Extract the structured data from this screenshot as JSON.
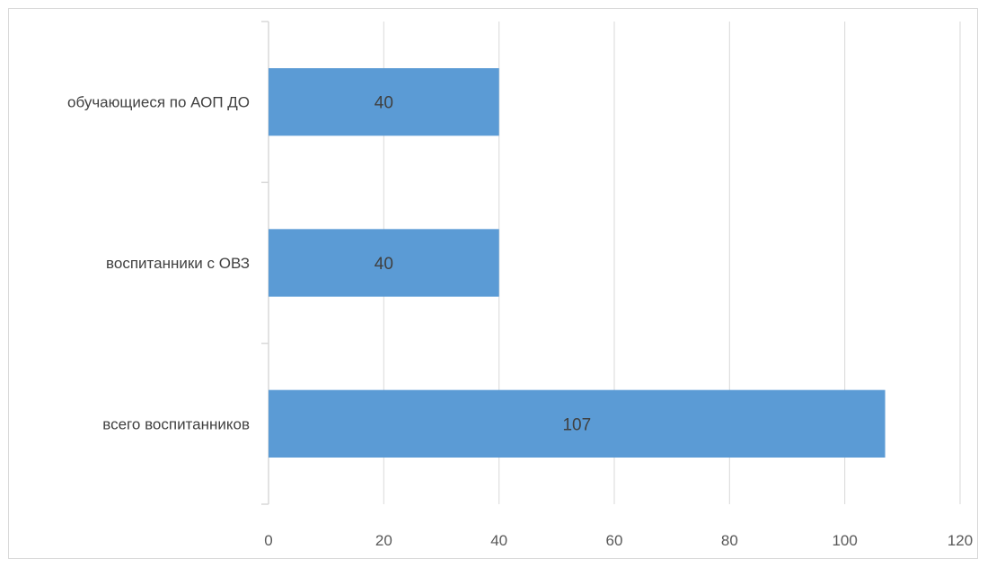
{
  "chart_data": {
    "type": "bar",
    "orientation": "horizontal",
    "categories": [
      "обучающиеся по АОП ДО",
      "воспитанники с ОВЗ",
      "всего воспитанников"
    ],
    "values": [
      40,
      40,
      107
    ],
    "data_labels": [
      "40",
      "40",
      "107"
    ],
    "xlim": [
      0,
      120
    ],
    "x_ticks": [
      0,
      20,
      40,
      60,
      80,
      100,
      120
    ],
    "x_tick_labels": [
      "0",
      "20",
      "40",
      "60",
      "80",
      "100",
      "120"
    ],
    "title": "",
    "xlabel": "",
    "ylabel": "",
    "grid": "vertical",
    "legend": "none",
    "colors": {
      "bar": "#5B9BD5",
      "grid": "#d9d9d9",
      "axis": "#d9d9d9",
      "frame": "#d9d9d9"
    }
  }
}
